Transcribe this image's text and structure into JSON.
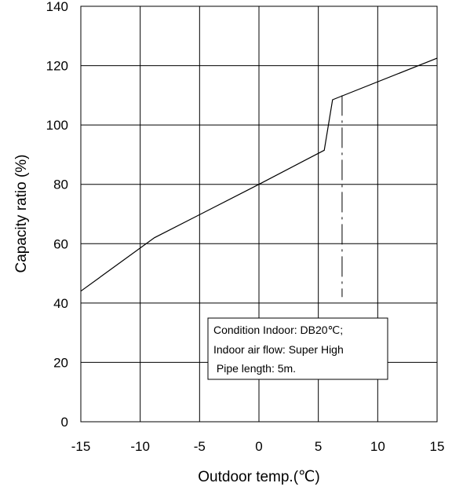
{
  "chart_data": {
    "type": "line",
    "title": "",
    "xlabel": "Outdoor temp.(℃)",
    "ylabel": "Capacity ratio (%)",
    "xlim": [
      -15,
      15
    ],
    "ylim": [
      0,
      140
    ],
    "xticks": [
      -15,
      -10,
      -5,
      0,
      5,
      10,
      15
    ],
    "yticks": [
      0,
      20,
      40,
      60,
      80,
      100,
      120,
      140
    ],
    "grid": true,
    "series": [
      {
        "x": [
          -15,
          -8.8,
          0,
          5.5,
          6.2,
          15
        ],
        "y": [
          44,
          62,
          80,
          91.5,
          108.5,
          122.5
        ]
      }
    ],
    "reference_line": {
      "x": 7,
      "y_range": [
        42,
        110
      ],
      "style": "dashed"
    },
    "annotation": [
      "Condition Indoor: DB20℃;",
      "Indoor air flow: Super High",
      " Pipe length: 5m."
    ]
  }
}
